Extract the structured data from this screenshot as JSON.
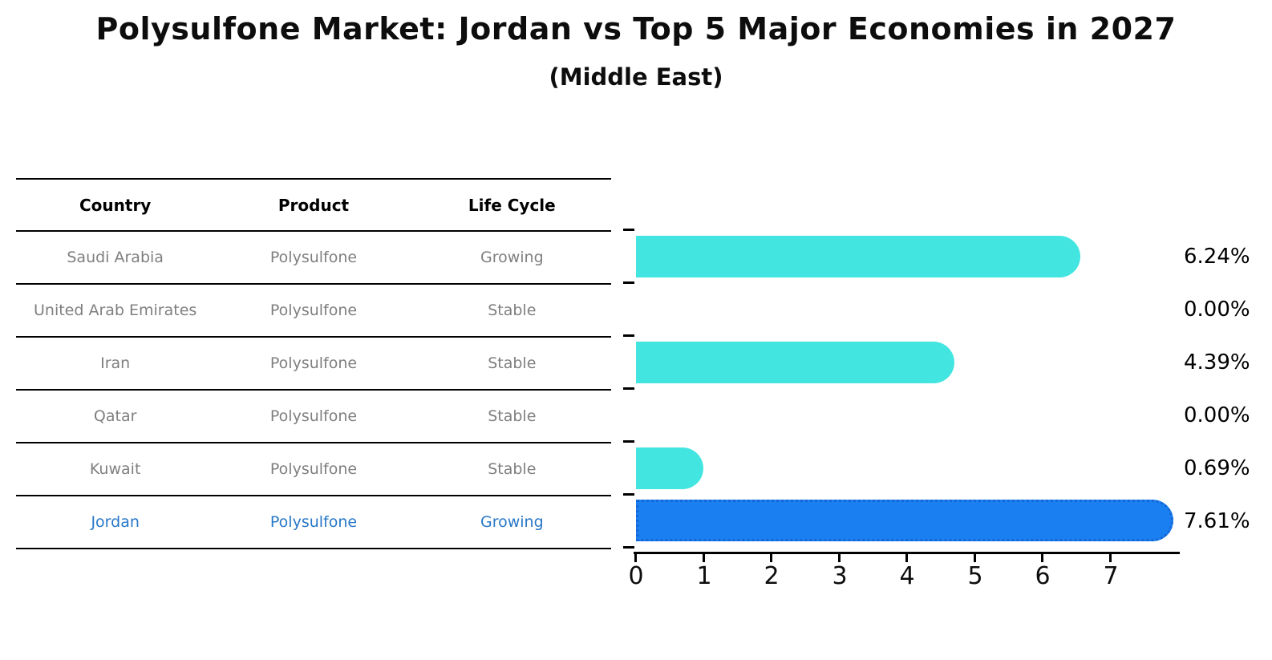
{
  "title": "Polysulfone Market: Jordan vs Top 5 Major Economies in 2027",
  "subtitle": "(Middle East)",
  "table": {
    "headers": [
      "Country",
      "Product",
      "Life Cycle"
    ],
    "rows": [
      {
        "country": "Saudi Arabia",
        "product": "Polysulfone",
        "life_cycle": "Growing"
      },
      {
        "country": "United Arab Emirates",
        "product": "Polysulfone",
        "life_cycle": "Stable"
      },
      {
        "country": "Iran",
        "product": "Polysulfone",
        "life_cycle": "Stable"
      },
      {
        "country": "Qatar",
        "product": "Polysulfone",
        "life_cycle": "Stable"
      },
      {
        "country": "Kuwait",
        "product": "Polysulfone",
        "life_cycle": "Stable"
      },
      {
        "country": "Jordan",
        "product": "Polysulfone",
        "life_cycle": "Growing"
      }
    ]
  },
  "chart_data": {
    "type": "bar",
    "orientation": "horizontal",
    "title": "Polysulfone Market: Jordan vs Top 5 Major Economies in 2027",
    "subtitle": "(Middle East)",
    "categories": [
      "Saudi Arabia",
      "United Arab Emirates",
      "Iran",
      "Qatar",
      "Kuwait",
      "Jordan"
    ],
    "values": [
      6.24,
      0.0,
      4.39,
      0.0,
      0.69,
      7.61
    ],
    "value_labels": [
      "6.24%",
      "0.00%",
      "4.39%",
      "0.00%",
      "0.69%",
      "7.61%"
    ],
    "xlabel": "",
    "ylabel": "",
    "xlim": [
      0,
      8
    ],
    "xticks": [
      "0",
      "1",
      "2",
      "3",
      "4",
      "5",
      "6",
      "7"
    ],
    "grid": false,
    "legend": "none",
    "bar_color": "#43E5E0",
    "highlight_index": 5,
    "highlight_bar_color": "#1A7FF0",
    "highlight_border_color": "#1566D6",
    "highlight_text_color": "#2878C8"
  }
}
